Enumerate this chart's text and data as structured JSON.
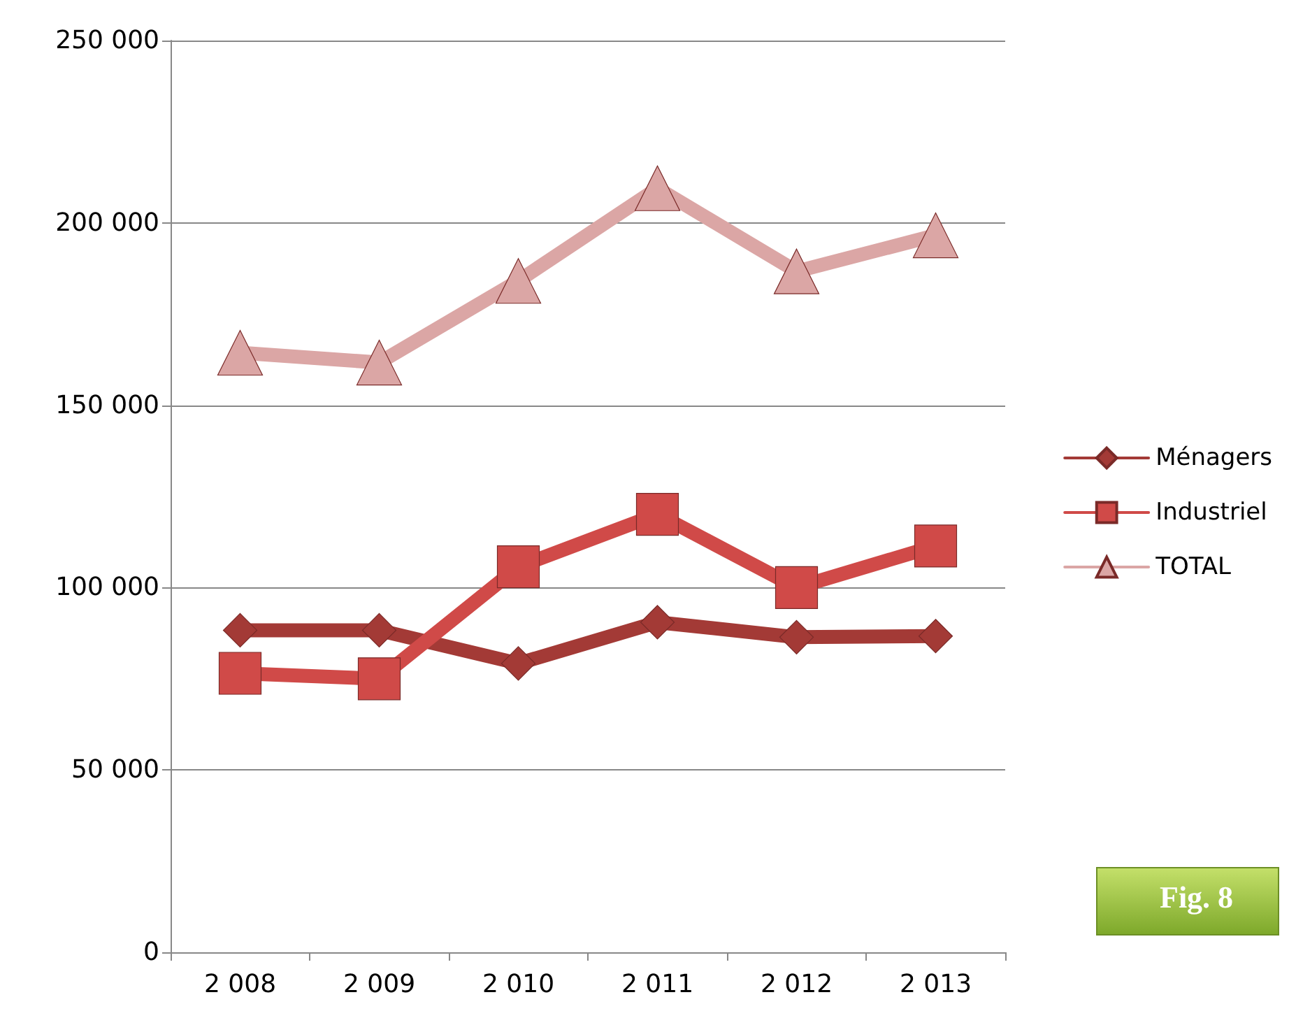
{
  "chart_data": {
    "type": "line",
    "categories": [
      "2 008",
      "2 009",
      "2 010",
      "2 011",
      "2 012",
      "2 013"
    ],
    "series": [
      {
        "name": "Ménagers",
        "color": "#a33a36",
        "marker": "diamond",
        "values": [
          88300,
          88300,
          79200,
          90500,
          86400,
          86700
        ]
      },
      {
        "name": "Industriel",
        "color": "#d04a48",
        "marker": "square",
        "values": [
          76500,
          75000,
          105700,
          120100,
          100000,
          111400
        ]
      },
      {
        "name": "TOTAL",
        "color": "#dba6a5",
        "marker": "triangle",
        "values": [
          164400,
          161700,
          184100,
          209500,
          186700,
          196600
        ]
      }
    ],
    "ylim": [
      0,
      250000
    ],
    "yticks": [
      {
        "value": 0,
        "label": "0"
      },
      {
        "value": 50000,
        "label": "50 000"
      },
      {
        "value": 100000,
        "label": "100 000"
      },
      {
        "value": 150000,
        "label": "150 000"
      },
      {
        "value": 200000,
        "label": "200 000"
      },
      {
        "value": 250000,
        "label": "250 000"
      }
    ],
    "grid": "y",
    "legend": "right",
    "line_style": "solid",
    "annotations": [
      "Fig. 8"
    ]
  }
}
